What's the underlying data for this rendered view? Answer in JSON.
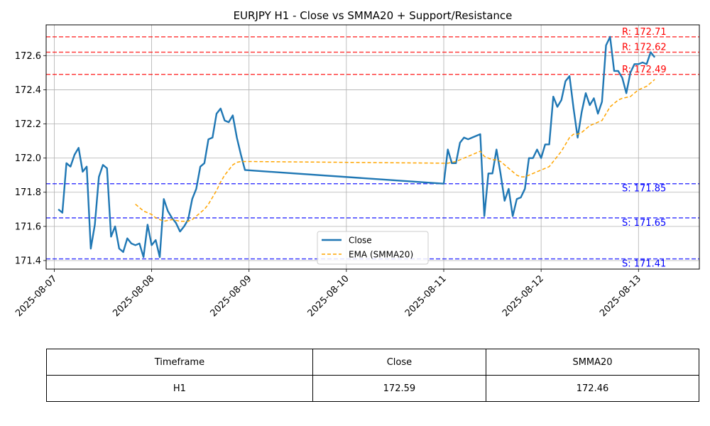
{
  "chart_data": {
    "type": "line",
    "title": "EURJPY H1 - Close vs SMMA20 + Support/Resistance",
    "xlabel": "",
    "ylabel": "",
    "xlim": [
      "2025-08-06 22:00",
      "2025-08-13 15:00"
    ],
    "ylim": [
      171.35,
      172.78
    ],
    "x_ticks": [
      "2025-08-07",
      "2025-08-08",
      "2025-08-09",
      "2025-08-10",
      "2025-08-11",
      "2025-08-12",
      "2025-08-13"
    ],
    "y_ticks": [
      "171.4",
      "171.6",
      "171.8",
      "172.0",
      "172.2",
      "172.4",
      "172.6"
    ],
    "grid": true,
    "legend_position": "bottom-center",
    "series": [
      {
        "name": "Close",
        "color": "#1f77b4",
        "style": "solid",
        "points": [
          [
            "2025-08-07 01:00",
            171.7
          ],
          [
            "2025-08-07 02:00",
            171.68
          ],
          [
            "2025-08-07 03:00",
            171.97
          ],
          [
            "2025-08-07 04:00",
            171.95
          ],
          [
            "2025-08-07 05:00",
            172.02
          ],
          [
            "2025-08-07 06:00",
            172.06
          ],
          [
            "2025-08-07 07:00",
            171.92
          ],
          [
            "2025-08-07 08:00",
            171.95
          ],
          [
            "2025-08-07 09:00",
            171.47
          ],
          [
            "2025-08-07 10:00",
            171.61
          ],
          [
            "2025-08-07 11:00",
            171.89
          ],
          [
            "2025-08-07 12:00",
            171.96
          ],
          [
            "2025-08-07 13:00",
            171.94
          ],
          [
            "2025-08-07 14:00",
            171.54
          ],
          [
            "2025-08-07 15:00",
            171.6
          ],
          [
            "2025-08-07 16:00",
            171.47
          ],
          [
            "2025-08-07 17:00",
            171.45
          ],
          [
            "2025-08-07 18:00",
            171.53
          ],
          [
            "2025-08-07 19:00",
            171.5
          ],
          [
            "2025-08-07 20:00",
            171.49
          ],
          [
            "2025-08-07 21:00",
            171.5
          ],
          [
            "2025-08-07 22:00",
            171.42
          ],
          [
            "2025-08-07 23:00",
            171.61
          ],
          [
            "2025-08-08 00:00",
            171.49
          ],
          [
            "2025-08-08 01:00",
            171.52
          ],
          [
            "2025-08-08 02:00",
            171.42
          ],
          [
            "2025-08-08 03:00",
            171.76
          ],
          [
            "2025-08-08 04:00",
            171.69
          ],
          [
            "2025-08-08 05:00",
            171.65
          ],
          [
            "2025-08-08 06:00",
            171.62
          ],
          [
            "2025-08-08 07:00",
            171.57
          ],
          [
            "2025-08-08 08:00",
            171.6
          ],
          [
            "2025-08-08 09:00",
            171.64
          ],
          [
            "2025-08-08 10:00",
            171.76
          ],
          [
            "2025-08-08 11:00",
            171.82
          ],
          [
            "2025-08-08 12:00",
            171.95
          ],
          [
            "2025-08-08 13:00",
            171.97
          ],
          [
            "2025-08-08 14:00",
            172.11
          ],
          [
            "2025-08-08 15:00",
            172.12
          ],
          [
            "2025-08-08 16:00",
            172.26
          ],
          [
            "2025-08-08 17:00",
            172.29
          ],
          [
            "2025-08-08 18:00",
            172.22
          ],
          [
            "2025-08-08 19:00",
            172.21
          ],
          [
            "2025-08-08 20:00",
            172.25
          ],
          [
            "2025-08-08 21:00",
            172.12
          ],
          [
            "2025-08-08 22:00",
            172.02
          ],
          [
            "2025-08-08 23:00",
            171.93
          ],
          [
            "2025-08-11 00:00",
            171.85
          ],
          [
            "2025-08-11 01:00",
            172.05
          ],
          [
            "2025-08-11 02:00",
            171.97
          ],
          [
            "2025-08-11 03:00",
            171.97
          ],
          [
            "2025-08-11 04:00",
            172.09
          ],
          [
            "2025-08-11 05:00",
            172.12
          ],
          [
            "2025-08-11 06:00",
            172.11
          ],
          [
            "2025-08-11 07:00",
            172.12
          ],
          [
            "2025-08-11 08:00",
            172.13
          ],
          [
            "2025-08-11 09:00",
            172.14
          ],
          [
            "2025-08-11 10:00",
            171.66
          ],
          [
            "2025-08-11 11:00",
            171.91
          ],
          [
            "2025-08-11 12:00",
            171.91
          ],
          [
            "2025-08-11 13:00",
            172.05
          ],
          [
            "2025-08-11 14:00",
            171.91
          ],
          [
            "2025-08-11 15:00",
            171.75
          ],
          [
            "2025-08-11 16:00",
            171.82
          ],
          [
            "2025-08-11 17:00",
            171.66
          ],
          [
            "2025-08-11 18:00",
            171.76
          ],
          [
            "2025-08-11 19:00",
            171.77
          ],
          [
            "2025-08-11 20:00",
            171.82
          ],
          [
            "2025-08-11 21:00",
            172.0
          ],
          [
            "2025-08-11 22:00",
            172.0
          ],
          [
            "2025-08-11 23:00",
            172.05
          ],
          [
            "2025-08-12 00:00",
            172.0
          ],
          [
            "2025-08-12 01:00",
            172.08
          ],
          [
            "2025-08-12 02:00",
            172.08
          ],
          [
            "2025-08-12 03:00",
            172.36
          ],
          [
            "2025-08-12 04:00",
            172.3
          ],
          [
            "2025-08-12 05:00",
            172.34
          ],
          [
            "2025-08-12 06:00",
            172.45
          ],
          [
            "2025-08-12 07:00",
            172.48
          ],
          [
            "2025-08-12 08:00",
            172.29
          ],
          [
            "2025-08-12 09:00",
            172.12
          ],
          [
            "2025-08-12 10:00",
            172.27
          ],
          [
            "2025-08-12 11:00",
            172.38
          ],
          [
            "2025-08-12 12:00",
            172.31
          ],
          [
            "2025-08-12 13:00",
            172.35
          ],
          [
            "2025-08-12 14:00",
            172.26
          ],
          [
            "2025-08-12 15:00",
            172.33
          ],
          [
            "2025-08-12 16:00",
            172.66
          ],
          [
            "2025-08-12 17:00",
            172.71
          ],
          [
            "2025-08-12 18:00",
            172.51
          ],
          [
            "2025-08-12 19:00",
            172.51
          ],
          [
            "2025-08-12 20:00",
            172.47
          ],
          [
            "2025-08-12 21:00",
            172.38
          ],
          [
            "2025-08-12 22:00",
            172.5
          ],
          [
            "2025-08-12 23:00",
            172.55
          ],
          [
            "2025-08-13 00:00",
            172.55
          ],
          [
            "2025-08-13 01:00",
            172.56
          ],
          [
            "2025-08-13 02:00",
            172.55
          ],
          [
            "2025-08-13 03:00",
            172.62
          ],
          [
            "2025-08-13 04:00",
            172.59
          ]
        ]
      },
      {
        "name": "EMA (SMMA20)",
        "color": "#ffa500",
        "style": "dashed",
        "points": [
          [
            "2025-08-07 20:00",
            171.73
          ],
          [
            "2025-08-07 21:00",
            171.71
          ],
          [
            "2025-08-07 22:00",
            171.69
          ],
          [
            "2025-08-07 23:00",
            171.68
          ],
          [
            "2025-08-08 00:00",
            171.67
          ],
          [
            "2025-08-08 01:00",
            171.65
          ],
          [
            "2025-08-08 02:00",
            171.64
          ],
          [
            "2025-08-08 03:00",
            171.63
          ],
          [
            "2025-08-08 05:00",
            171.64
          ],
          [
            "2025-08-08 07:00",
            171.63
          ],
          [
            "2025-08-08 09:00",
            171.63
          ],
          [
            "2025-08-08 10:00",
            171.64
          ],
          [
            "2025-08-08 11:00",
            171.66
          ],
          [
            "2025-08-08 12:00",
            171.68
          ],
          [
            "2025-08-08 13:00",
            171.7
          ],
          [
            "2025-08-08 14:00",
            171.73
          ],
          [
            "2025-08-08 15:00",
            171.77
          ],
          [
            "2025-08-08 16:00",
            171.81
          ],
          [
            "2025-08-08 17:00",
            171.86
          ],
          [
            "2025-08-08 18:00",
            171.9
          ],
          [
            "2025-08-08 19:00",
            171.93
          ],
          [
            "2025-08-08 20:00",
            171.96
          ],
          [
            "2025-08-08 21:00",
            171.975
          ],
          [
            "2025-08-08 22:00",
            171.98
          ],
          [
            "2025-08-08 23:00",
            171.98
          ],
          [
            "2025-08-11 00:00",
            171.97
          ],
          [
            "2025-08-11 01:00",
            171.97
          ],
          [
            "2025-08-11 02:00",
            171.975
          ],
          [
            "2025-08-11 03:00",
            171.98
          ],
          [
            "2025-08-11 04:00",
            171.99
          ],
          [
            "2025-08-11 05:00",
            172.0
          ],
          [
            "2025-08-11 06:00",
            172.01
          ],
          [
            "2025-08-11 07:00",
            172.02
          ],
          [
            "2025-08-11 08:00",
            172.03
          ],
          [
            "2025-08-11 09:00",
            172.04
          ],
          [
            "2025-08-11 10:00",
            172.01
          ],
          [
            "2025-08-11 11:00",
            172.0
          ],
          [
            "2025-08-11 12:00",
            171.99
          ],
          [
            "2025-08-11 13:00",
            171.99
          ],
          [
            "2025-08-11 14:00",
            171.98
          ],
          [
            "2025-08-11 15:00",
            171.96
          ],
          [
            "2025-08-11 16:00",
            171.94
          ],
          [
            "2025-08-11 17:00",
            171.92
          ],
          [
            "2025-08-11 18:00",
            171.9
          ],
          [
            "2025-08-11 19:00",
            171.89
          ],
          [
            "2025-08-11 20:00",
            171.89
          ],
          [
            "2025-08-11 21:00",
            171.9
          ],
          [
            "2025-08-11 22:00",
            171.91
          ],
          [
            "2025-08-11 23:00",
            171.92
          ],
          [
            "2025-08-12 00:00",
            171.93
          ],
          [
            "2025-08-12 01:00",
            171.94
          ],
          [
            "2025-08-12 02:00",
            171.95
          ],
          [
            "2025-08-12 03:00",
            171.98
          ],
          [
            "2025-08-12 04:00",
            172.01
          ],
          [
            "2025-08-12 05:00",
            172.04
          ],
          [
            "2025-08-12 06:00",
            172.08
          ],
          [
            "2025-08-12 07:00",
            172.12
          ],
          [
            "2025-08-12 08:00",
            172.14
          ],
          [
            "2025-08-12 09:00",
            172.14
          ],
          [
            "2025-08-12 10:00",
            172.15
          ],
          [
            "2025-08-12 11:00",
            172.17
          ],
          [
            "2025-08-12 12:00",
            172.19
          ],
          [
            "2025-08-12 13:00",
            172.2
          ],
          [
            "2025-08-12 14:00",
            172.21
          ],
          [
            "2025-08-12 15:00",
            172.22
          ],
          [
            "2025-08-12 16:00",
            172.26
          ],
          [
            "2025-08-12 17:00",
            172.3
          ],
          [
            "2025-08-12 18:00",
            172.32
          ],
          [
            "2025-08-12 19:00",
            172.34
          ],
          [
            "2025-08-12 20:00",
            172.35
          ],
          [
            "2025-08-12 21:00",
            172.355
          ],
          [
            "2025-08-12 22:00",
            172.36
          ],
          [
            "2025-08-12 23:00",
            172.38
          ],
          [
            "2025-08-13 00:00",
            172.4
          ],
          [
            "2025-08-13 01:00",
            172.41
          ],
          [
            "2025-08-13 02:00",
            172.42
          ],
          [
            "2025-08-13 03:00",
            172.44
          ],
          [
            "2025-08-13 04:00",
            172.46
          ]
        ]
      }
    ],
    "levels": [
      {
        "kind": "resistance",
        "value": 172.71,
        "label": "R: 172.71",
        "color": "#ff0000"
      },
      {
        "kind": "resistance",
        "value": 172.62,
        "label": "R: 172.62",
        "color": "#ff0000"
      },
      {
        "kind": "resistance",
        "value": 172.49,
        "label": "R: 172.49",
        "color": "#ff0000"
      },
      {
        "kind": "support",
        "value": 171.85,
        "label": "S: 171.85",
        "color": "#0000ff"
      },
      {
        "kind": "support",
        "value": 171.65,
        "label": "S: 171.65",
        "color": "#0000ff"
      },
      {
        "kind": "support",
        "value": 171.41,
        "label": "S: 171.41",
        "color": "#0000ff"
      }
    ]
  },
  "table": {
    "headers": [
      "Timeframe",
      "Close",
      "SMMA20"
    ],
    "row": [
      "H1",
      "172.59",
      "172.46"
    ]
  }
}
